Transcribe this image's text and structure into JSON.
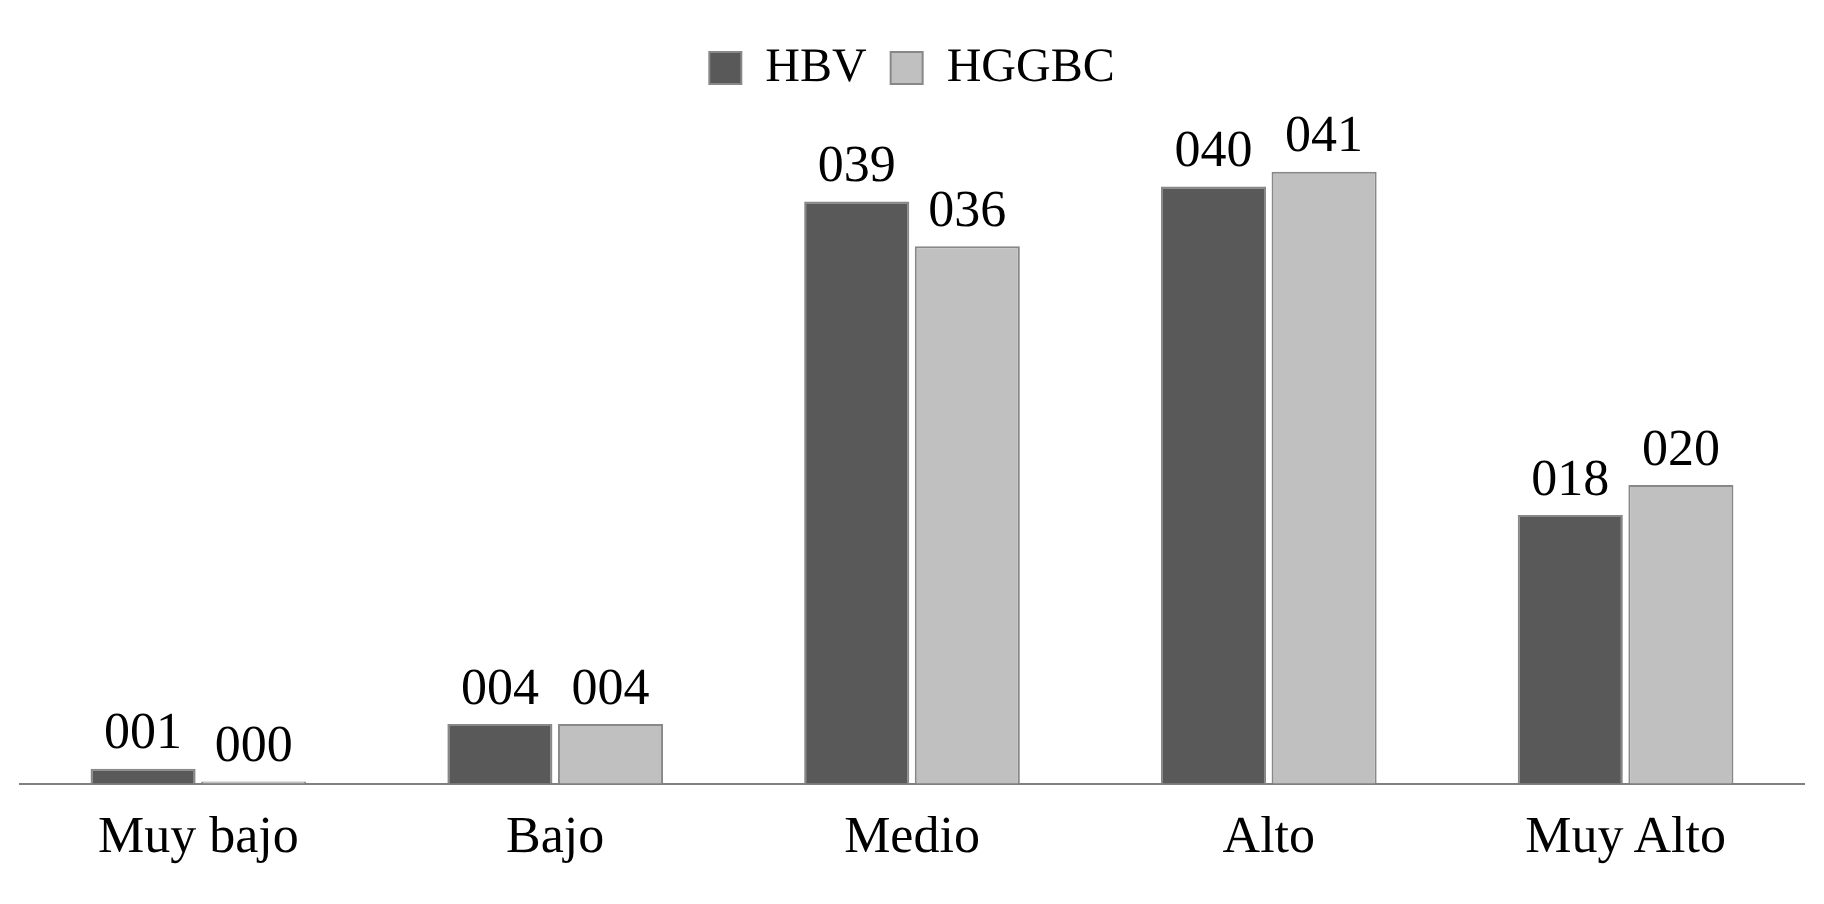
{
  "chart_data": {
    "type": "bar",
    "categories": [
      "Muy bajo",
      "Bajo",
      "Medio",
      "Alto",
      "Muy Alto"
    ],
    "series": [
      {
        "name": "HBV",
        "color": "#595959",
        "values": [
          1,
          4,
          39,
          40,
          18
        ],
        "value_labels": [
          "001",
          "004",
          "039",
          "040",
          "018"
        ]
      },
      {
        "name": "HGGBC",
        "color": "#c0c0c0",
        "values": [
          0,
          4,
          36,
          41,
          20
        ],
        "value_labels": [
          "000",
          "004",
          "036",
          "041",
          "020"
        ]
      }
    ],
    "legend": "top",
    "grid": false
  }
}
